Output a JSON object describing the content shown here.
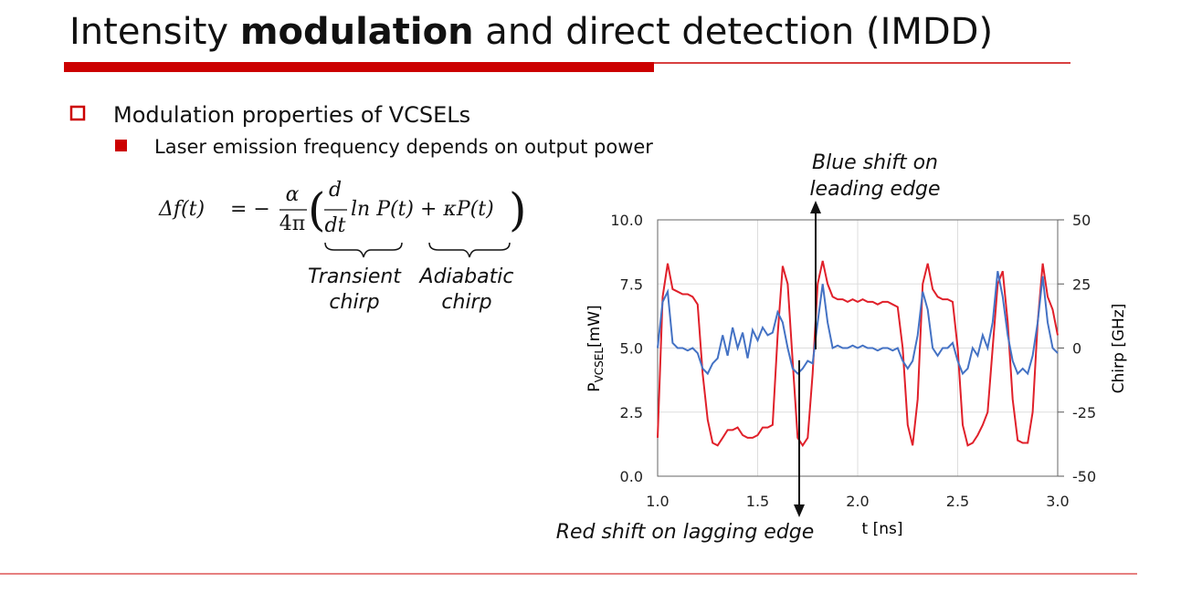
{
  "slide": {
    "title": {
      "pre": "Intensity ",
      "bold": "modulation",
      "post": " and direct detection (IMDD)"
    },
    "bullet1": "Modulation properties of VCSELs",
    "bullet2": "Laser emission frequency depends on output power",
    "equation": {
      "lhs": "Δf(t)",
      "eq": "= −",
      "num1": "α",
      "den1": "4π",
      "open": "(",
      "num2": "d",
      "den2": "dt",
      "rest": "ln P(t) + κP(t)",
      "close": ")"
    },
    "brace_labels": [
      [
        "Transient",
        "chirp"
      ],
      [
        "Adiabatic",
        "chirp"
      ]
    ]
  },
  "chart_data": {
    "type": "line",
    "annotations": [
      [
        "Blue shift on",
        "leading edge"
      ],
      [
        "Red shift on lagging edge"
      ]
    ],
    "xlabel": "t [ns]",
    "ylabel": {
      "main": "P",
      "sub": "VCSEL",
      "unit": "[mW]"
    },
    "y2label": "Chirp [GHz]",
    "x": [
      1.0,
      1.025,
      1.05,
      1.075,
      1.1,
      1.125,
      1.15,
      1.175,
      1.2,
      1.225,
      1.25,
      1.275,
      1.3,
      1.325,
      1.35,
      1.375,
      1.4,
      1.425,
      1.45,
      1.475,
      1.5,
      1.525,
      1.55,
      1.575,
      1.6,
      1.625,
      1.65,
      1.675,
      1.7,
      1.725,
      1.75,
      1.775,
      1.8,
      1.825,
      1.85,
      1.875,
      1.9,
      1.925,
      1.95,
      1.975,
      2.0,
      2.025,
      2.05,
      2.075,
      2.1,
      2.125,
      2.15,
      2.175,
      2.2,
      2.225,
      2.25,
      2.275,
      2.3,
      2.325,
      2.35,
      2.375,
      2.4,
      2.425,
      2.45,
      2.475,
      2.5,
      2.525,
      2.55,
      2.575,
      2.6,
      2.625,
      2.65,
      2.675,
      2.7,
      2.725,
      2.75,
      2.775,
      2.8,
      2.825,
      2.85,
      2.875,
      2.9,
      2.925,
      2.95,
      2.975,
      3.0
    ],
    "series": [
      {
        "name": "Power",
        "color": "#e0202a",
        "values": [
          1.5,
          7.0,
          8.3,
          7.3,
          7.2,
          7.1,
          7.1,
          7.0,
          6.7,
          4.0,
          2.2,
          1.3,
          1.2,
          1.5,
          1.8,
          1.8,
          1.9,
          1.6,
          1.5,
          1.5,
          1.6,
          1.9,
          1.9,
          2.0,
          5.5,
          8.2,
          7.5,
          4.5,
          1.5,
          1.2,
          1.5,
          4.0,
          7.5,
          8.4,
          7.5,
          7.0,
          6.9,
          6.9,
          6.8,
          6.9,
          6.8,
          6.9,
          6.8,
          6.8,
          6.7,
          6.8,
          6.8,
          6.7,
          6.6,
          5.0,
          2.0,
          1.2,
          3.0,
          7.5,
          8.3,
          7.3,
          7.0,
          6.9,
          6.9,
          6.8,
          5.0,
          2.0,
          1.2,
          1.3,
          1.6,
          2.0,
          2.5,
          5.0,
          7.5,
          8.0,
          6.0,
          3.0,
          1.4,
          1.3,
          1.3,
          2.5,
          6.0,
          8.3,
          7.0,
          6.5,
          5.5
        ]
      },
      {
        "name": "Chirp",
        "color": "#4472c4",
        "axis": "y2",
        "values": [
          0,
          18,
          22,
          2,
          0,
          0,
          -1,
          0,
          -2,
          -8,
          -10,
          -6,
          -4,
          5,
          -3,
          8,
          0,
          6,
          -4,
          7,
          3,
          8,
          5,
          6,
          14,
          10,
          0,
          -8,
          -10,
          -8,
          -5,
          -6,
          10,
          25,
          10,
          0,
          1,
          0,
          0,
          1,
          0,
          1,
          0,
          0,
          -1,
          0,
          0,
          -1,
          0,
          -5,
          -8,
          -5,
          5,
          22,
          15,
          0,
          -3,
          0,
          0,
          2,
          -5,
          -10,
          -8,
          0,
          -3,
          5,
          0,
          10,
          30,
          20,
          5,
          -5,
          -10,
          -8,
          -10,
          -3,
          10,
          28,
          10,
          0,
          -2
        ]
      }
    ],
    "xlim": [
      1.0,
      3.0
    ],
    "xticks": [
      {
        "value": 1.0,
        "label": "1.0"
      },
      {
        "value": 1.5,
        "label": "1.5"
      },
      {
        "value": 2.0,
        "label": "2.0"
      },
      {
        "value": 2.5,
        "label": "2.5"
      },
      {
        "value": 3.0,
        "label": "3.0"
      }
    ],
    "ylim": [
      0,
      10
    ],
    "yticks": [
      {
        "value": 0,
        "label": "0.0"
      },
      {
        "value": 2.5,
        "label": "2.5"
      },
      {
        "value": 5,
        "label": "5.0"
      },
      {
        "value": 7.5,
        "label": "7.5"
      },
      {
        "value": 10,
        "label": "10.0"
      }
    ],
    "y2lim": [
      -50,
      50
    ],
    "y2ticks": [
      -50,
      -25,
      0,
      25,
      50
    ],
    "grid": true
  }
}
